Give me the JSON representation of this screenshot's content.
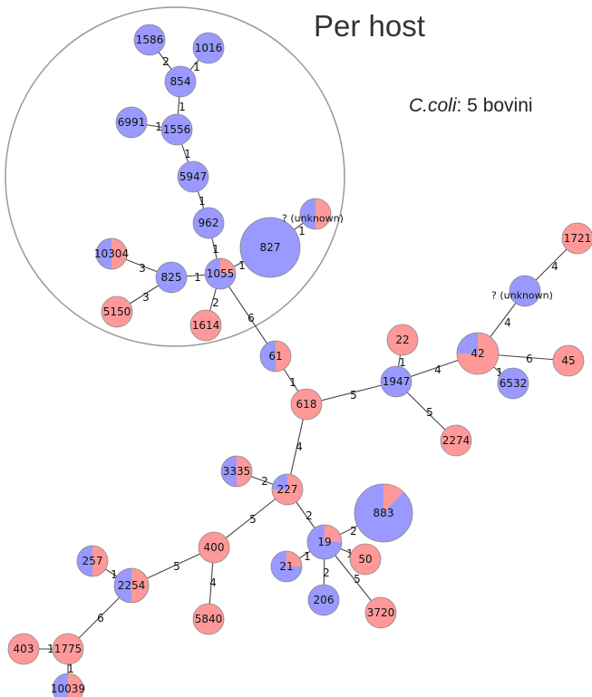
{
  "header": {
    "title": "Per host",
    "subtitle_species": "C.coli",
    "subtitle_rest": ": 5 bovini"
  },
  "colors": {
    "bovine": "#9999ff",
    "other": "#ff9999",
    "cluster_circle": "#999999",
    "edge": "#444444"
  },
  "network": {
    "nodes": [
      {
        "id": "1586",
        "label": "1586",
        "blue": 1.0
      },
      {
        "id": "1016",
        "label": "1016",
        "blue": 1.0
      },
      {
        "id": "854",
        "label": "854",
        "blue": 1.0
      },
      {
        "id": "6991",
        "label": "6991",
        "blue": 1.0
      },
      {
        "id": "1556",
        "label": "1556",
        "blue": 1.0
      },
      {
        "id": "5947",
        "label": "5947",
        "blue": 1.0
      },
      {
        "id": "962",
        "label": "962",
        "blue": 1.0
      },
      {
        "id": "827",
        "label": "827",
        "blue": 1.0
      },
      {
        "id": "unk1",
        "label": "? (unknown)",
        "blue": 0.5
      },
      {
        "id": "10304",
        "label": "10304",
        "blue": 0.5
      },
      {
        "id": "825",
        "label": "825",
        "blue": 1.0
      },
      {
        "id": "1055",
        "label": "1055",
        "blue": 0.75
      },
      {
        "id": "5150",
        "label": "5150",
        "blue": 0.0
      },
      {
        "id": "1614",
        "label": "1614",
        "blue": 0.0
      },
      {
        "id": "61",
        "label": "61",
        "blue": 0.5
      },
      {
        "id": "618",
        "label": "618",
        "blue": 0.0
      },
      {
        "id": "1721",
        "label": "1721",
        "blue": 0.0
      },
      {
        "id": "unk2",
        "label": "? (unknown)",
        "blue": 1.0
      },
      {
        "id": "22",
        "label": "22",
        "blue": 0.0
      },
      {
        "id": "1947",
        "label": "1947",
        "blue": 1.0
      },
      {
        "id": "42",
        "label": "42",
        "blue": 0.25
      },
      {
        "id": "45",
        "label": "45",
        "blue": 0.0
      },
      {
        "id": "6532",
        "label": "6532",
        "blue": 1.0
      },
      {
        "id": "2274",
        "label": "2274",
        "blue": 0.0
      },
      {
        "id": "3335",
        "label": "3335",
        "blue": 0.5
      },
      {
        "id": "227",
        "label": "227",
        "blue": 0.25
      },
      {
        "id": "883",
        "label": "883",
        "blue": 0.88
      },
      {
        "id": "400",
        "label": "400",
        "blue": 0.0
      },
      {
        "id": "19",
        "label": "19",
        "blue": 0.75
      },
      {
        "id": "50",
        "label": "50",
        "blue": 0.0
      },
      {
        "id": "257",
        "label": "257",
        "blue": 0.5
      },
      {
        "id": "2254",
        "label": "2254",
        "blue": 0.5
      },
      {
        "id": "21",
        "label": "21",
        "blue": 0.75
      },
      {
        "id": "206",
        "label": "206",
        "blue": 1.0
      },
      {
        "id": "3720",
        "label": "3720",
        "blue": 0.0
      },
      {
        "id": "5840",
        "label": "5840",
        "blue": 0.0
      },
      {
        "id": "403",
        "label": "403",
        "blue": 0.0
      },
      {
        "id": "1775",
        "label": "1775",
        "blue": 0.0
      },
      {
        "id": "10039",
        "label": "10039",
        "blue": 0.5
      }
    ],
    "edges": [
      {
        "source": "1586",
        "target": "854",
        "weight": "2"
      },
      {
        "source": "1016",
        "target": "854",
        "weight": "1"
      },
      {
        "source": "854",
        "target": "1556",
        "weight": "1"
      },
      {
        "source": "6991",
        "target": "1556",
        "weight": "1"
      },
      {
        "source": "1556",
        "target": "5947",
        "weight": "1"
      },
      {
        "source": "5947",
        "target": "962",
        "weight": "1"
      },
      {
        "source": "962",
        "target": "1055",
        "weight": "1"
      },
      {
        "source": "827",
        "target": "unk1",
        "weight": "1"
      },
      {
        "source": "827",
        "target": "1055",
        "weight": "1"
      },
      {
        "source": "10304",
        "target": "825",
        "weight": "3"
      },
      {
        "source": "825",
        "target": "1055",
        "weight": "1"
      },
      {
        "source": "5150",
        "target": "825",
        "weight": "3"
      },
      {
        "source": "1055",
        "target": "1614",
        "weight": "2"
      },
      {
        "source": "1055",
        "target": "61",
        "weight": "6"
      },
      {
        "source": "61",
        "target": "618",
        "weight": "1"
      },
      {
        "source": "618",
        "target": "1947",
        "weight": "5"
      },
      {
        "source": "22",
        "target": "1947",
        "weight": "1"
      },
      {
        "source": "1947",
        "target": "42",
        "weight": "4"
      },
      {
        "source": "1947",
        "target": "2274",
        "weight": "5"
      },
      {
        "source": "42",
        "target": "unk2",
        "weight": "4"
      },
      {
        "source": "unk2",
        "target": "1721",
        "weight": "4"
      },
      {
        "source": "42",
        "target": "45",
        "weight": "6"
      },
      {
        "source": "42",
        "target": "6532",
        "weight": "1"
      },
      {
        "source": "618",
        "target": "227",
        "weight": "4"
      },
      {
        "source": "3335",
        "target": "227",
        "weight": "2"
      },
      {
        "source": "227",
        "target": "19",
        "weight": "2"
      },
      {
        "source": "227",
        "target": "400",
        "weight": "5"
      },
      {
        "source": "19",
        "target": "883",
        "weight": "2"
      },
      {
        "source": "19",
        "target": "50",
        "weight": "1"
      },
      {
        "source": "19",
        "target": "21",
        "weight": "1"
      },
      {
        "source": "19",
        "target": "206",
        "weight": "2"
      },
      {
        "source": "19",
        "target": "3720",
        "weight": "5"
      },
      {
        "source": "400",
        "target": "2254",
        "weight": "5"
      },
      {
        "source": "400",
        "target": "5840",
        "weight": "4"
      },
      {
        "source": "257",
        "target": "2254",
        "weight": "1"
      },
      {
        "source": "2254",
        "target": "1775",
        "weight": "6"
      },
      {
        "source": "403",
        "target": "1775",
        "weight": "1"
      },
      {
        "source": "1775",
        "target": "10039",
        "weight": "1"
      }
    ]
  }
}
